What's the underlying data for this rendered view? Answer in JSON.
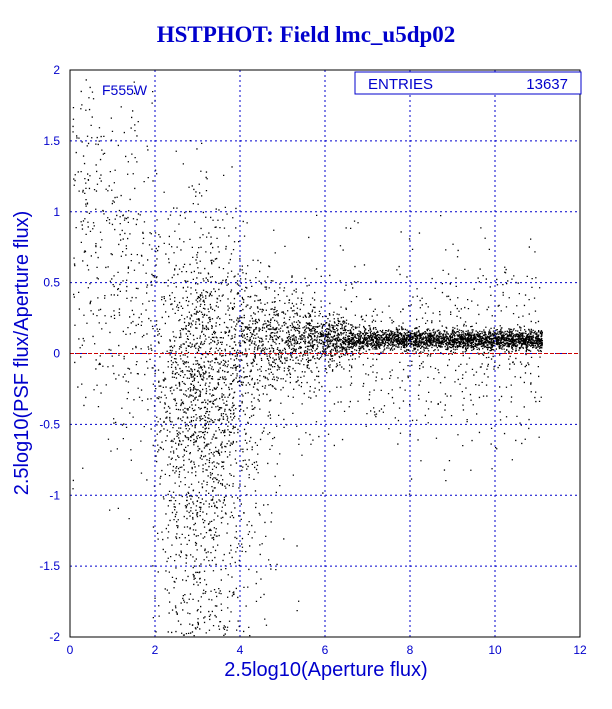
{
  "chart_data": {
    "type": "scatter",
    "title": "HSTPHOT: Field lmc_u5dp02",
    "xlabel": "2.5log10(Aperture flux)",
    "ylabel": "2.5log10(PSF flux/Aperture flux)",
    "xlim": [
      0,
      12
    ],
    "ylim": [
      -2,
      2
    ],
    "x_ticks": [
      "0",
      "2",
      "4",
      "6",
      "8",
      "10",
      "12"
    ],
    "y_ticks": [
      "2",
      "1.5",
      "1",
      "0.5",
      "0",
      "-0.5",
      "-1",
      "-1.5",
      "-2"
    ],
    "grid": true,
    "filter_label": "F555W",
    "stats": {
      "label": "ENTRIES",
      "value": "13637"
    },
    "reference_line": {
      "y": 0,
      "color": "#cc0000"
    },
    "colors": {
      "axes": "#0000cc",
      "points": "#000000",
      "frame": "#000000"
    },
    "point_count": 13637,
    "distribution": "dense band near y=0.1 from x≈4 to x≈11, wide vertical spread at x<4"
  }
}
